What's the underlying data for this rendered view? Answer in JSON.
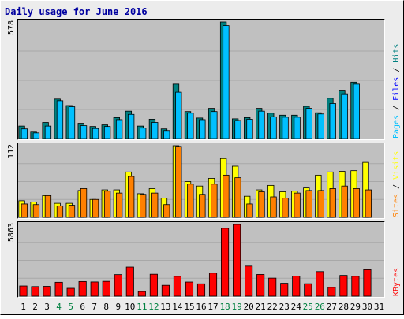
{
  "chart_data": {
    "type": "bar",
    "title": "Daily usage for June 2016",
    "x": [
      "1",
      "2",
      "3",
      "4",
      "5",
      "6",
      "7",
      "8",
      "9",
      "10",
      "11",
      "12",
      "13",
      "14",
      "15",
      "16",
      "17",
      "18",
      "19",
      "20",
      "21",
      "22",
      "23",
      "24",
      "25",
      "26",
      "27",
      "28",
      "29",
      "30",
      "31"
    ],
    "weekend_days": [
      "4",
      "5",
      "11",
      "12",
      "18",
      "19",
      "25",
      "26"
    ],
    "colors": {
      "background": "#C0C0C0",
      "frame": "#ECECEC",
      "title": "#0000A0",
      "pages": "#008080",
      "files": "#0000FF",
      "hits": "#00C0FF",
      "sites": "#FF8000",
      "visits": "#FFFF00",
      "kbytes": "#FF0000",
      "weekend_label": "#008040",
      "weekday_label": "#000000"
    },
    "panels": [
      {
        "id": "hits",
        "max_label": "578",
        "ymax": 578,
        "side_legend": [
          {
            "text": "Pages",
            "color": "#00C0FF"
          },
          {
            "text": " / ",
            "color": "#000000"
          },
          {
            "text": "Files",
            "color": "#0000FF"
          },
          {
            "text": " / ",
            "color": "#000000"
          },
          {
            "text": "Hits",
            "color": "#008080"
          }
        ],
        "series": [
          {
            "color": "#008080",
            "values": [
              62,
              36,
              80,
              196,
              164,
              76,
              60,
              68,
              104,
              136,
              62,
              96,
              48,
              270,
              134,
              102,
              150,
              578,
              98,
              104,
              150,
              126,
              116,
              116,
              160,
              128,
              200,
              240,
              280,
              0,
              0
            ]
          },
          {
            "color": "#00C0FF",
            "values": [
              48,
              28,
              62,
              188,
              158,
              64,
              50,
              60,
              94,
              120,
              52,
              80,
              40,
              230,
              126,
              94,
              134,
              560,
              90,
              96,
              136,
              108,
              106,
              106,
              150,
              122,
              174,
              222,
              270,
              0,
              0
            ]
          }
        ]
      },
      {
        "id": "visits",
        "max_label": "112",
        "ymax": 112,
        "side_legend": [
          {
            "text": "Sites",
            "color": "#FF8000"
          },
          {
            "text": " / ",
            "color": "#000000"
          },
          {
            "text": "Visits",
            "color": "#FFFF00"
          }
        ],
        "series": [
          {
            "color": "#FFFF00",
            "values": [
              26,
              24,
              34,
              22,
              22,
              42,
              28,
              43,
              43,
              71,
              37,
              45,
              30,
              112,
              56,
              49,
              61,
              92,
              80,
              33,
              43,
              50,
              40,
              41,
              46,
              66,
              71,
              72,
              73,
              86,
              0
            ]
          },
          {
            "color": "#FF8000",
            "values": [
              21,
              20,
              34,
              18,
              19,
              45,
              28,
              41,
              38,
              64,
              36,
              38,
              20,
              111,
              52,
              36,
              52,
              66,
              62,
              21,
              40,
              32,
              30,
              38,
              42,
              42,
              45,
              49,
              45,
              43,
              0
            ]
          }
        ]
      },
      {
        "id": "kbytes",
        "max_label": "5863",
        "ymax": 5863,
        "side_legend": [
          {
            "text": "KBytes",
            "color": "#FF0000"
          }
        ],
        "series": [
          {
            "color": "#FF0000",
            "values": [
              836,
              784,
              804,
              1138,
              644,
              1200,
              1164,
              1214,
              1762,
              2382,
              381,
              1793,
              890,
              1622,
              1158,
              1013,
              1885,
              5550,
              5863,
              2460,
              1774,
              1474,
              1058,
              1640,
              1020,
              2010,
              718,
              1698,
              1626,
              2165,
              0
            ]
          }
        ]
      }
    ]
  }
}
